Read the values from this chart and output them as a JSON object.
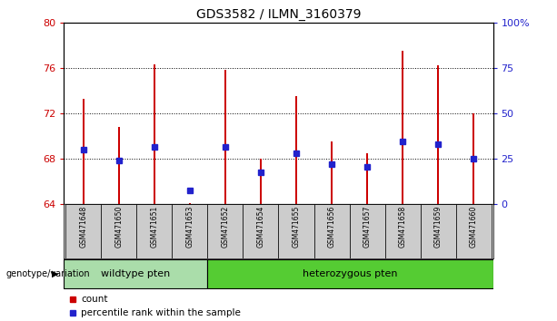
{
  "title": "GDS3582 / ILMN_3160379",
  "samples": [
    "GSM471648",
    "GSM471650",
    "GSM471651",
    "GSM471653",
    "GSM471652",
    "GSM471654",
    "GSM471655",
    "GSM471656",
    "GSM471657",
    "GSM471658",
    "GSM471659",
    "GSM471660"
  ],
  "red_values": [
    73.3,
    70.8,
    76.3,
    64.1,
    75.8,
    68.0,
    73.5,
    69.5,
    68.5,
    77.5,
    76.2,
    72.0
  ],
  "blue_values": [
    68.8,
    67.8,
    69.0,
    65.2,
    69.0,
    66.8,
    68.5,
    67.5,
    67.3,
    69.5,
    69.3,
    68.0
  ],
  "ylim_left": [
    64,
    80
  ],
  "ylim_right": [
    0,
    100
  ],
  "yticks_left": [
    64,
    68,
    72,
    76,
    80
  ],
  "yticks_right": [
    0,
    25,
    50,
    75,
    100
  ],
  "ytick_labels_right": [
    "0",
    "25",
    "50",
    "75",
    "100%"
  ],
  "wildtype_count": 4,
  "wildtype_label": "wildtype pten",
  "heterozygous_label": "heterozygous pten",
  "genotype_label": "genotype/variation",
  "bar_color": "#cc0000",
  "blue_color": "#2222cc",
  "wildtype_bg": "#aaddaa",
  "heterozygous_bg": "#55cc33",
  "sample_bg": "#cccccc",
  "legend_count": "count",
  "legend_percentile": "percentile rank within the sample",
  "bar_width": 0.07,
  "base_value": 64,
  "grid_dotted": [
    68,
    72,
    76
  ]
}
